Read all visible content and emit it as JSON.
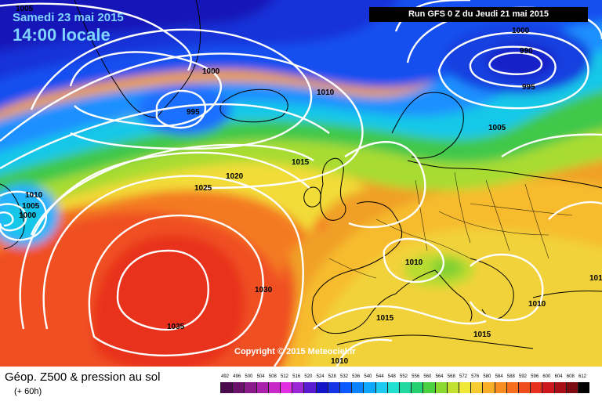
{
  "header": {
    "date": "Samedi 23 mai 2015",
    "hour": "14:00 locale",
    "run": "Run GFS 0 Z du Jeudi 21 mai 2015"
  },
  "copyright": "Copyright © 2015 Meteociel.fr",
  "legend": {
    "title": "Géop. Z500 & pression au sol",
    "subtitle": "(+ 60h)",
    "scale_values": [
      "492",
      "496",
      "500",
      "504",
      "508",
      "512",
      "516",
      "520",
      "524",
      "528",
      "532",
      "536",
      "540",
      "544",
      "548",
      "552",
      "556",
      "560",
      "564",
      "568",
      "572",
      "576",
      "580",
      "584",
      "588",
      "592",
      "596",
      "600",
      "604",
      "608",
      "612"
    ],
    "scale_colors": [
      "#4b0a4b",
      "#6a116a",
      "#8b1a8b",
      "#aa22aa",
      "#c82ac8",
      "#e030e0",
      "#9a26d6",
      "#5a1ad0",
      "#1414c8",
      "#1434e6",
      "#0a5aff",
      "#0a82ff",
      "#10a8ff",
      "#1ecaf0",
      "#22e0d0",
      "#20d8a0",
      "#24d070",
      "#4ad040",
      "#8ad830",
      "#c2e030",
      "#f0e838",
      "#f6cc30",
      "#f8ae28",
      "#f88e22",
      "#f66e1e",
      "#ee4e1e",
      "#e8301e",
      "#cc181c",
      "#a81018",
      "#7c0c12",
      "#000000"
    ]
  },
  "isobars": [
    {
      "value": "1005",
      "label": "1005"
    },
    {
      "value": "1000",
      "label": "1000"
    },
    {
      "value": "995",
      "label": "995"
    },
    {
      "value": "1010",
      "label": "1010"
    },
    {
      "value": "1015",
      "label": "1015"
    },
    {
      "value": "1020",
      "label": "1020"
    },
    {
      "value": "1025",
      "label": "1025"
    },
    {
      "value": "1030",
      "label": "1030"
    },
    {
      "value": "1035",
      "label": "1035"
    },
    {
      "value": "1000",
      "label": "1000"
    },
    {
      "value": "990",
      "label": "990"
    },
    {
      "value": "995",
      "label": "995"
    },
    {
      "value": "1005",
      "label": "1005"
    },
    {
      "value": "1010",
      "label": "1010"
    },
    {
      "value": "1005",
      "label": "1005"
    },
    {
      "value": "1000",
      "label": "1000"
    },
    {
      "value": "1010",
      "label": "1010"
    },
    {
      "value": "1010",
      "label": "1010"
    },
    {
      "value": "1015",
      "label": "1015"
    },
    {
      "value": "1015",
      "label": "1015"
    },
    {
      "value": "1010",
      "label": "1010"
    },
    {
      "value": "1010",
      "label": "1010"
    }
  ]
}
